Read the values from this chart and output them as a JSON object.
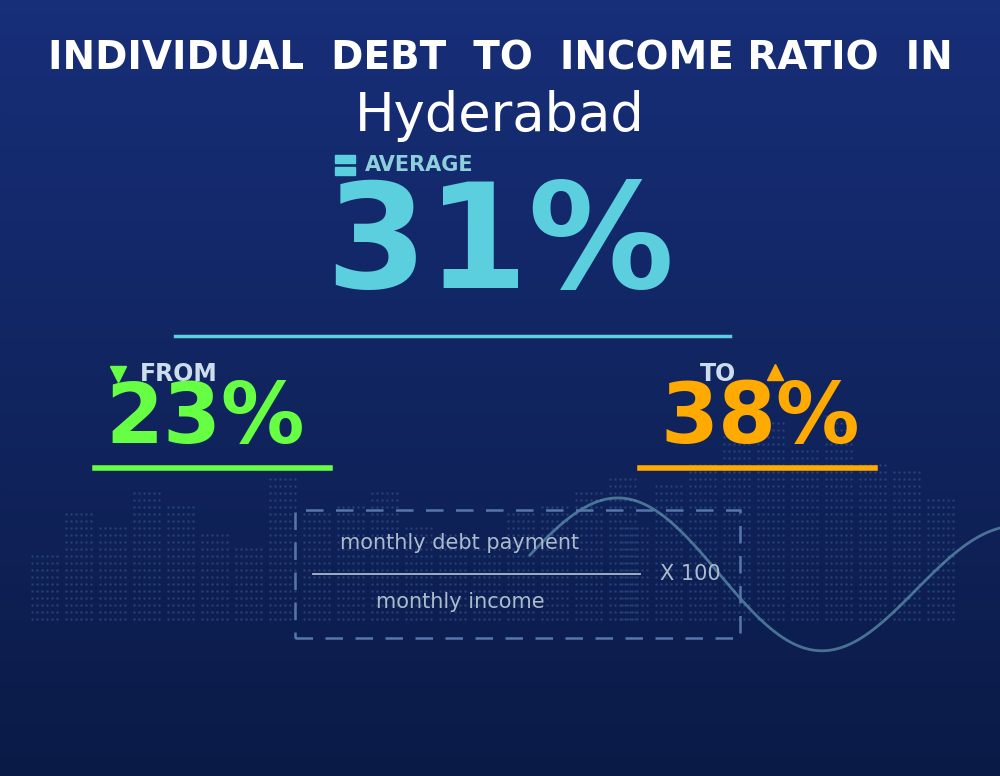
{
  "title_line1": "INDIVIDUAL  DEBT  TO  INCOME RATIO  IN",
  "title_line2": "Hyderabad",
  "avg_label": "AVERAGE",
  "avg_value": "31%",
  "from_label": "FROM",
  "from_value": "23%",
  "to_label": "TO",
  "to_value": "38%",
  "formula_line1": "monthly debt payment",
  "formula_line2": "monthly income",
  "formula_mult": "X 100",
  "bg_color": "#0c1e45",
  "title_color": "#ffffff",
  "city_color": "#ffffff",
  "avg_icon_color": "#5bcfde",
  "avg_label_color": "#8ecfdc",
  "avg_value_color": "#5bcfde",
  "avg_line_color": "#5bcfde",
  "from_arrow_color": "#66ff44",
  "from_label_color": "#ccddee",
  "from_value_color": "#66ff44",
  "from_underline_color": "#66ff44",
  "to_arrow_color": "#ffaa00",
  "to_label_color": "#ccddee",
  "to_value_color": "#ffaa00",
  "to_underline_color": "#ffaa00",
  "formula_color": "#aabbcc",
  "formula_border_color": "#5577aa"
}
